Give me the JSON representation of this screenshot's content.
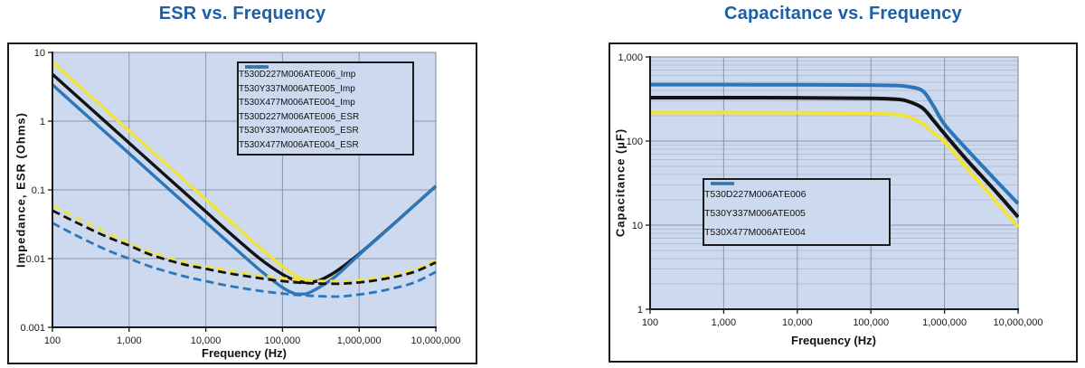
{
  "colors": {
    "title": "#1a5fa8",
    "axis": "#1a1a1a",
    "grid_major": "#8c95a6",
    "grid_minor": "#aab6c9",
    "plot_bg": "#cdd9ee",
    "yellow": "#f2e23c",
    "black": "#121212",
    "blue": "#2d76b9"
  },
  "chart_data": [
    {
      "type": "line",
      "title": "ESR vs. Frequency",
      "xlabel": "Frequency (Hz)",
      "ylabel": "Impedance, ESR (Ohms)",
      "x_scale": "log",
      "y_scale": "log",
      "xlim": [
        100,
        10000000
      ],
      "ylim": [
        0.001,
        10
      ],
      "grid": "major",
      "legend_position": "upper-right",
      "x_ticks": [
        {
          "v": 100,
          "label": "100"
        },
        {
          "v": 1000,
          "label": "1,000"
        },
        {
          "v": 10000,
          "label": "10,000"
        },
        {
          "v": 100000,
          "label": "100,000"
        },
        {
          "v": 1000000,
          "label": "1,000,000"
        },
        {
          "v": 10000000,
          "label": "10,000,000"
        }
      ],
      "y_ticks": [
        {
          "v": 10,
          "label": "10"
        },
        {
          "v": 1,
          "label": "1"
        },
        {
          "v": 0.1,
          "label": "0.1"
        },
        {
          "v": 0.01,
          "label": "0.01"
        },
        {
          "v": 0.001,
          "label": "0.001"
        }
      ],
      "series": [
        {
          "name": "T530D227M006ATE006_Imp",
          "color": "yellow",
          "style": "solid",
          "points": [
            [
              100,
              7.23
            ],
            [
              200,
              3.62
            ],
            [
              500,
              1.45
            ],
            [
              1000,
              0.723
            ],
            [
              2000,
              0.362
            ],
            [
              5000,
              0.145
            ],
            [
              10000,
              0.0724
            ],
            [
              20000,
              0.0363
            ],
            [
              50000,
              0.0147
            ],
            [
              100000,
              0.0077
            ],
            [
              150000,
              0.0056
            ],
            [
              200000,
              0.0049
            ],
            [
              300000,
              0.0048
            ],
            [
              500000,
              0.0063
            ],
            [
              1000000,
              0.0116
            ],
            [
              2000000,
              0.0227
            ],
            [
              5000000,
              0.0567
            ],
            [
              10000000,
              0.113
            ]
          ]
        },
        {
          "name": "T530Y337M006ATE005_Imp",
          "color": "black",
          "style": "solid",
          "points": [
            [
              100,
              4.82
            ],
            [
              200,
              2.41
            ],
            [
              500,
              0.965
            ],
            [
              1000,
              0.482
            ],
            [
              2000,
              0.241
            ],
            [
              5000,
              0.0965
            ],
            [
              10000,
              0.0483
            ],
            [
              20000,
              0.0242
            ],
            [
              50000,
              0.0101
            ],
            [
              100000,
              0.0059
            ],
            [
              150000,
              0.0048
            ],
            [
              200000,
              0.0045
            ],
            [
              300000,
              0.0048
            ],
            [
              500000,
              0.0065
            ],
            [
              1000000,
              0.0117
            ],
            [
              2000000,
              0.0228
            ],
            [
              5000000,
              0.0566
            ],
            [
              10000000,
              0.1132
            ]
          ]
        },
        {
          "name": "T530X477M006ATE004_Imp",
          "color": "blue",
          "style": "solid",
          "points": [
            [
              100,
              3.39
            ],
            [
              200,
              1.69
            ],
            [
              500,
              0.677
            ],
            [
              1000,
              0.339
            ],
            [
              2000,
              0.169
            ],
            [
              5000,
              0.0677
            ],
            [
              10000,
              0.0339
            ],
            [
              20000,
              0.017
            ],
            [
              50000,
              0.0069
            ],
            [
              100000,
              0.0038
            ],
            [
              150000,
              0.00305
            ],
            [
              200000,
              0.00305
            ],
            [
              300000,
              0.0038
            ],
            [
              500000,
              0.0056
            ],
            [
              1000000,
              0.0114
            ],
            [
              2000000,
              0.0226
            ],
            [
              5000000,
              0.0565
            ],
            [
              10000000,
              0.1131
            ]
          ]
        },
        {
          "name": "T530D227M006ATE006_ESR",
          "color": "yellow",
          "style": "dashed",
          "points": [
            [
              100,
              0.06
            ],
            [
              200,
              0.04
            ],
            [
              500,
              0.024
            ],
            [
              1000,
              0.017
            ],
            [
              2000,
              0.0122
            ],
            [
              5000,
              0.009
            ],
            [
              10000,
              0.0077
            ],
            [
              20000,
              0.0067
            ],
            [
              50000,
              0.0057
            ],
            [
              100000,
              0.0052
            ],
            [
              200000,
              0.0048
            ],
            [
              500000,
              0.0047
            ],
            [
              1000000,
              0.0049
            ],
            [
              2000000,
              0.0054
            ],
            [
              5000000,
              0.0068
            ],
            [
              10000000,
              0.0095
            ]
          ]
        },
        {
          "name": "T530Y337M006ATE005_ESR",
          "color": "black",
          "style": "dashed",
          "points": [
            [
              100,
              0.05
            ],
            [
              200,
              0.034
            ],
            [
              500,
              0.021
            ],
            [
              1000,
              0.0155
            ],
            [
              2000,
              0.0112
            ],
            [
              5000,
              0.0083
            ],
            [
              10000,
              0.0071
            ],
            [
              20000,
              0.0061
            ],
            [
              50000,
              0.0052
            ],
            [
              100000,
              0.0047
            ],
            [
              200000,
              0.0044
            ],
            [
              500000,
              0.0043
            ],
            [
              1000000,
              0.0045
            ],
            [
              2000000,
              0.005
            ],
            [
              5000000,
              0.0063
            ],
            [
              10000000,
              0.0088
            ]
          ]
        },
        {
          "name": "T530X477M006ATE004_ESR",
          "color": "blue",
          "style": "dashed",
          "points": [
            [
              100,
              0.033
            ],
            [
              200,
              0.022
            ],
            [
              500,
              0.0135
            ],
            [
              1000,
              0.01
            ],
            [
              2000,
              0.0075
            ],
            [
              5000,
              0.0056
            ],
            [
              10000,
              0.0047
            ],
            [
              20000,
              0.004
            ],
            [
              50000,
              0.0034
            ],
            [
              100000,
              0.0031
            ],
            [
              200000,
              0.0029
            ],
            [
              500000,
              0.0028
            ],
            [
              1000000,
              0.003
            ],
            [
              2000000,
              0.0034
            ],
            [
              5000000,
              0.0044
            ],
            [
              10000000,
              0.0064
            ]
          ]
        }
      ]
    },
    {
      "type": "line",
      "title": "Capacitance vs. Frequency",
      "xlabel": "Frequency (Hz)",
      "ylabel": "Capacitance (µF)",
      "x_scale": "log",
      "y_scale": "log",
      "xlim": [
        100,
        10000000
      ],
      "ylim": [
        1,
        1000
      ],
      "grid": "major+minor-y",
      "legend_position": "center-left",
      "x_ticks": [
        {
          "v": 100,
          "label": "100"
        },
        {
          "v": 1000,
          "label": "1,000"
        },
        {
          "v": 10000,
          "label": "10,000"
        },
        {
          "v": 100000,
          "label": "100,000"
        },
        {
          "v": 1000000,
          "label": "1,000,000"
        },
        {
          "v": 10000000,
          "label": "10,000,000"
        }
      ],
      "y_ticks": [
        {
          "v": 1000,
          "label": "1,000"
        },
        {
          "v": 100,
          "label": "100"
        },
        {
          "v": 10,
          "label": "10"
        },
        {
          "v": 1,
          "label": "1"
        }
      ],
      "series": [
        {
          "name": "T530D227M006ATE006",
          "color": "yellow",
          "style": "solid",
          "points": [
            [
              100,
              218
            ],
            [
              1000,
              218
            ],
            [
              10000,
              217
            ],
            [
              100000,
              213
            ],
            [
              200000,
              208
            ],
            [
              300000,
              198
            ],
            [
              500000,
              162
            ],
            [
              700000,
              126
            ],
            [
              1000000,
              98
            ],
            [
              2000000,
              48
            ],
            [
              5000000,
              19
            ],
            [
              10000000,
              9.5
            ]
          ]
        },
        {
          "name": "T530Y337M006ATE005",
          "color": "black",
          "style": "solid",
          "points": [
            [
              100,
              328
            ],
            [
              1000,
              328
            ],
            [
              10000,
              327
            ],
            [
              100000,
              322
            ],
            [
              200000,
              316
            ],
            [
              300000,
              302
            ],
            [
              500000,
              248
            ],
            [
              700000,
              178
            ],
            [
              1000000,
              122
            ],
            [
              2000000,
              60
            ],
            [
              5000000,
              25
            ],
            [
              10000000,
              12.5
            ]
          ]
        },
        {
          "name": "T530X477M006ATE004",
          "color": "blue",
          "style": "solid",
          "points": [
            [
              100,
              468
            ],
            [
              1000,
              468
            ],
            [
              10000,
              467
            ],
            [
              100000,
              463
            ],
            [
              200000,
              458
            ],
            [
              300000,
              448
            ],
            [
              500000,
              398
            ],
            [
              700000,
              265
            ],
            [
              1000000,
              158
            ],
            [
              2000000,
              80
            ],
            [
              5000000,
              34
            ],
            [
              10000000,
              18
            ]
          ]
        }
      ]
    }
  ]
}
